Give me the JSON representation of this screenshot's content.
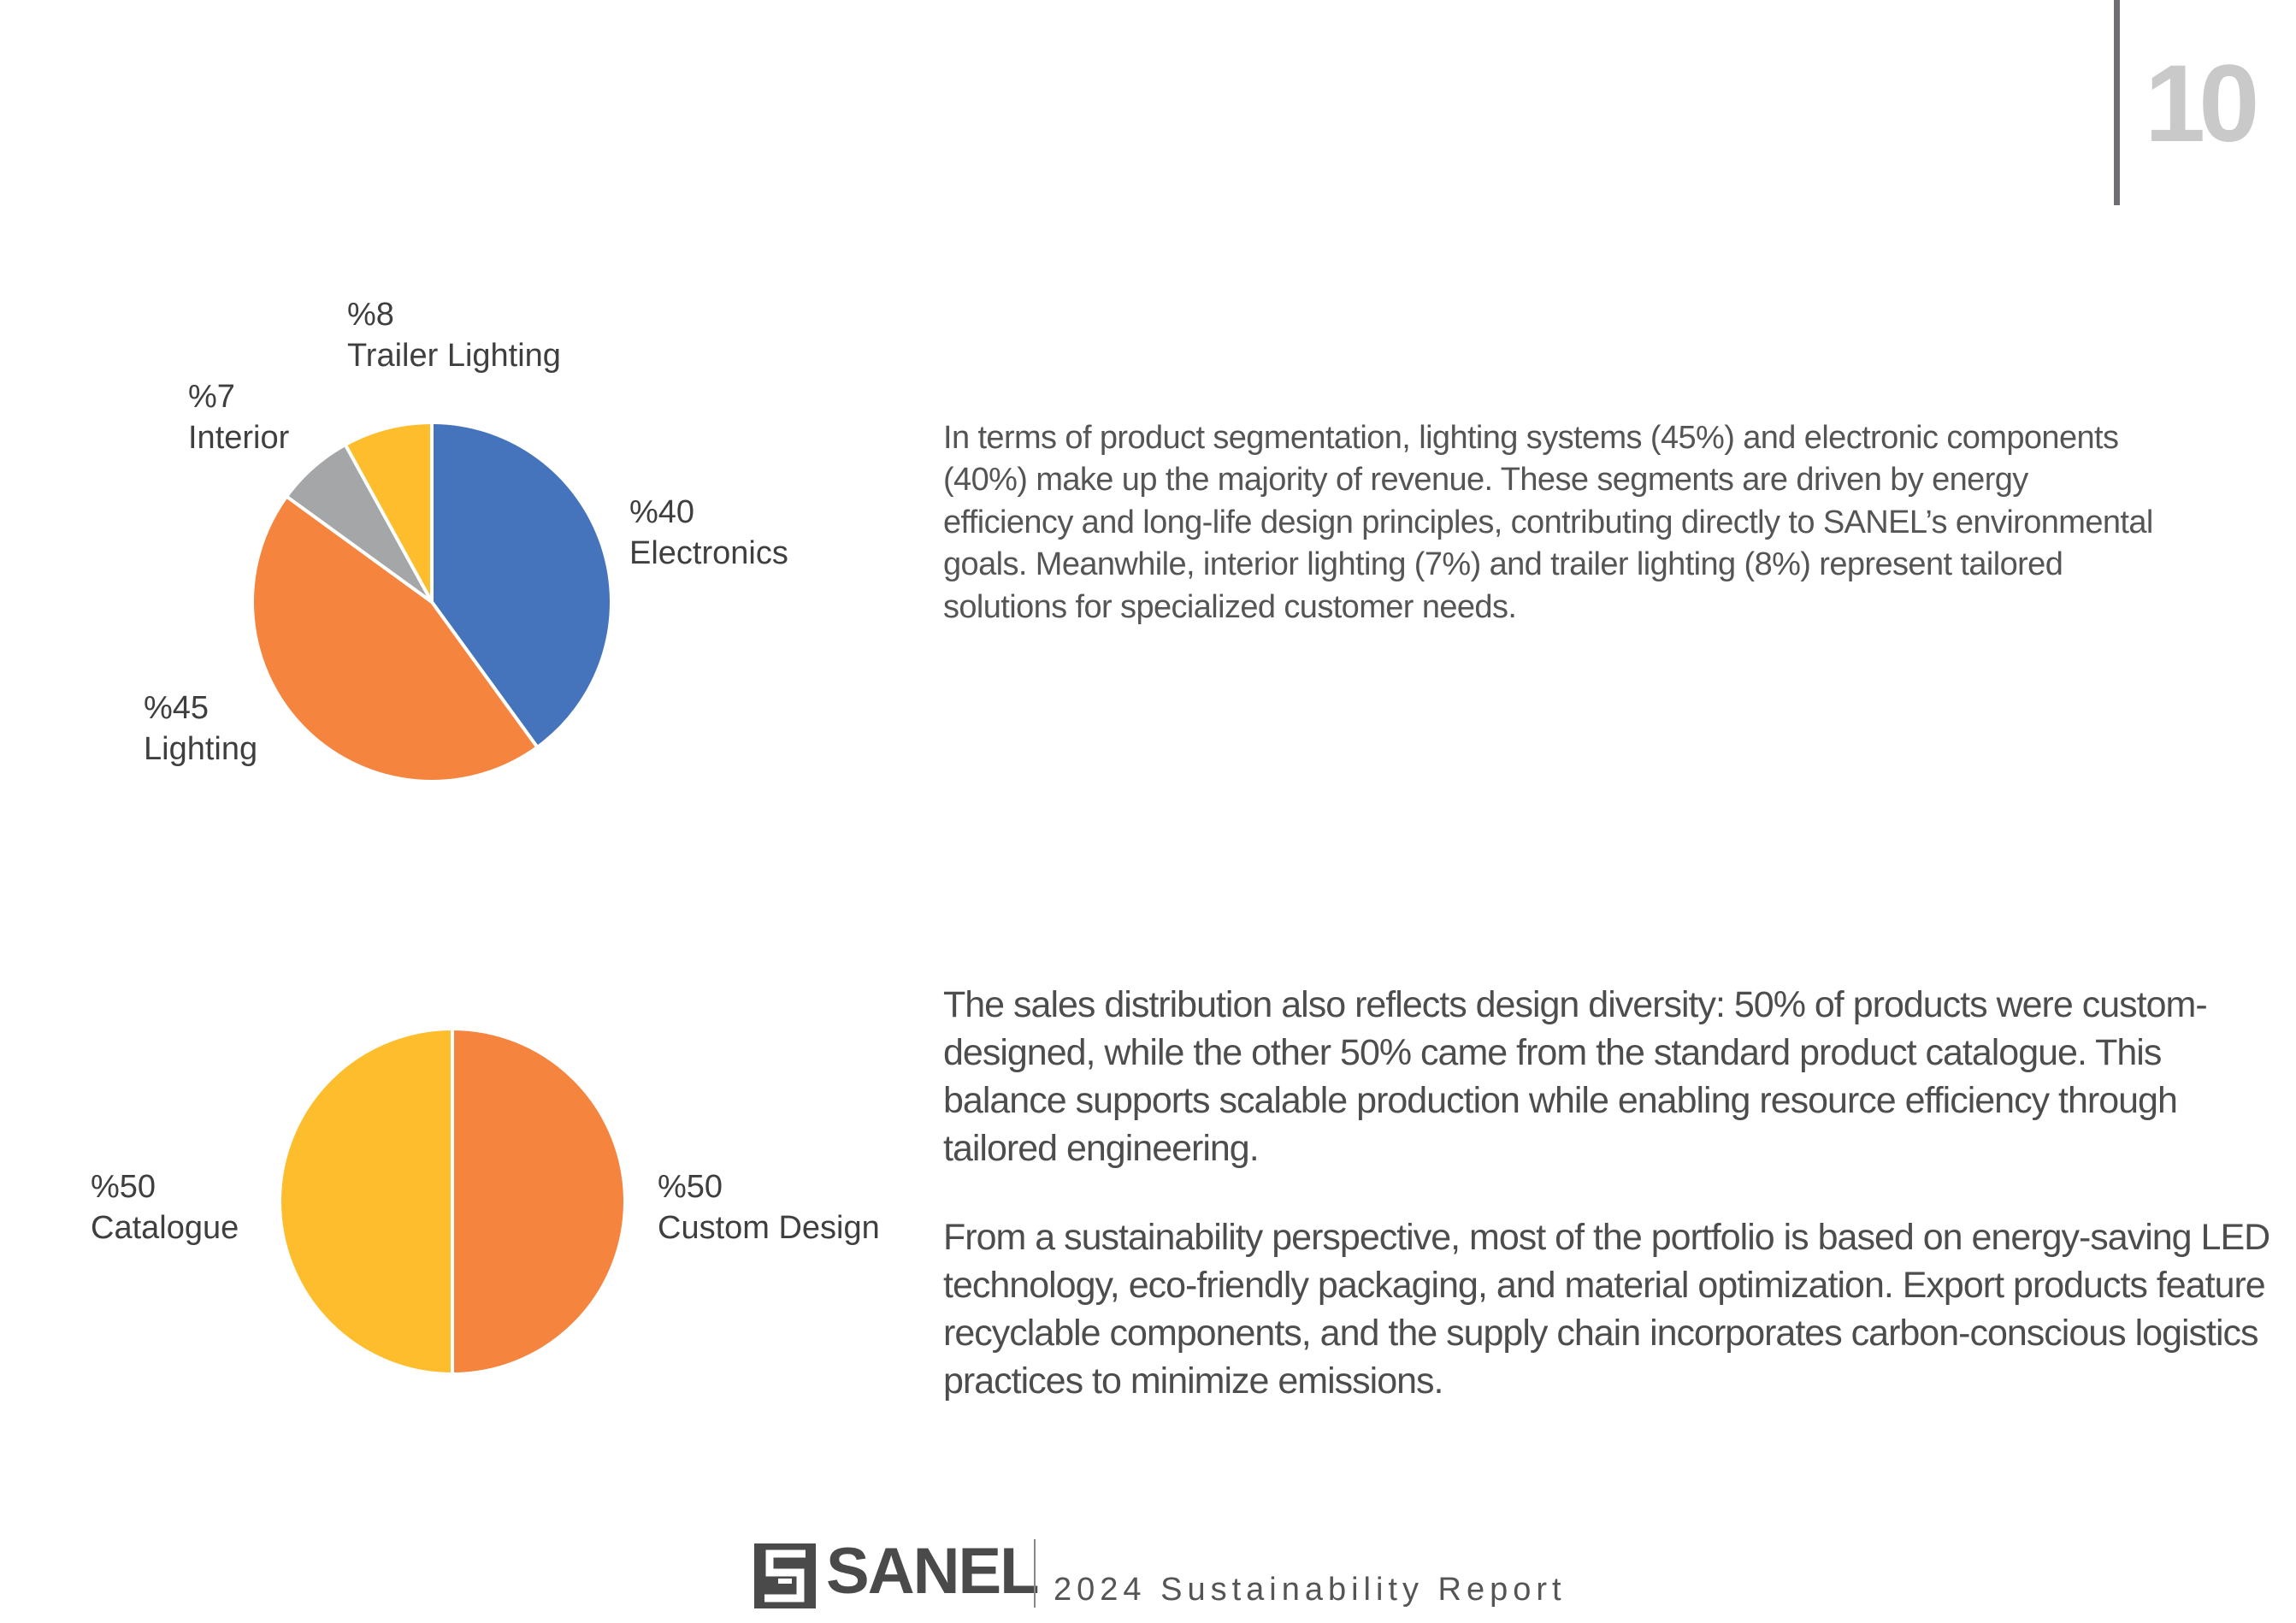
{
  "page": {
    "number": "10"
  },
  "chart_data": [
    {
      "type": "pie",
      "categories": [
        "Electronics",
        "Lighting",
        "Interior",
        "Trailer Lighting"
      ],
      "values": [
        40,
        45,
        7,
        8
      ],
      "labels": [
        {
          "pct": "%40",
          "name": "Electronics"
        },
        {
          "pct": "%45",
          "name": "Lighting"
        },
        {
          "pct": "%7",
          "name": "Interior"
        },
        {
          "pct": "%8",
          "name": "Trailer Lighting"
        }
      ],
      "colors": [
        "#4674bc",
        "#f5843f",
        "#a5a6a8",
        "#fdbd2c"
      ],
      "start": "12 o'clock, clockwise",
      "legend": "none"
    },
    {
      "type": "pie",
      "categories": [
        "Custom Design",
        "Catalogue"
      ],
      "values": [
        50,
        50
      ],
      "labels": [
        {
          "pct": "%50",
          "name": "Custom Design"
        },
        {
          "pct": "%50",
          "name": "Catalogue"
        }
      ],
      "colors": [
        "#f5843f",
        "#fdbd2c"
      ],
      "start": "12 o'clock, clockwise",
      "legend": "none"
    }
  ],
  "text": {
    "para1": "In terms of product segmentation, lighting systems (45%) and electronic components (40%) make up the majority of revenue. These segments are driven by energy efficiency and long-life design principles, contributing directly to SANEL’s environmental goals. Meanwhile, interior lighting (7%) and trailer lighting (8%) represent tailored solutions for specialized customer needs.",
    "para2": "The sales distribution also reflects design diversity: 50% of products were custom-designed, while the other 50% came from the standard product catalogue. This balance supports scalable production while enabling resource efficiency through tailored engineering.",
    "para3": "From a sustainability perspective, most of the portfolio is based on energy-saving LED technology, eco-friendly packaging, and material optimization. Export products feature recyclable components, and the supply chain incorporates carbon-conscious logistics practices to minimize emissions."
  },
  "footer": {
    "brand": "SANEL",
    "report": "2024 Sustainability Report",
    "logo_icon": "sanel-s-logo-icon"
  }
}
